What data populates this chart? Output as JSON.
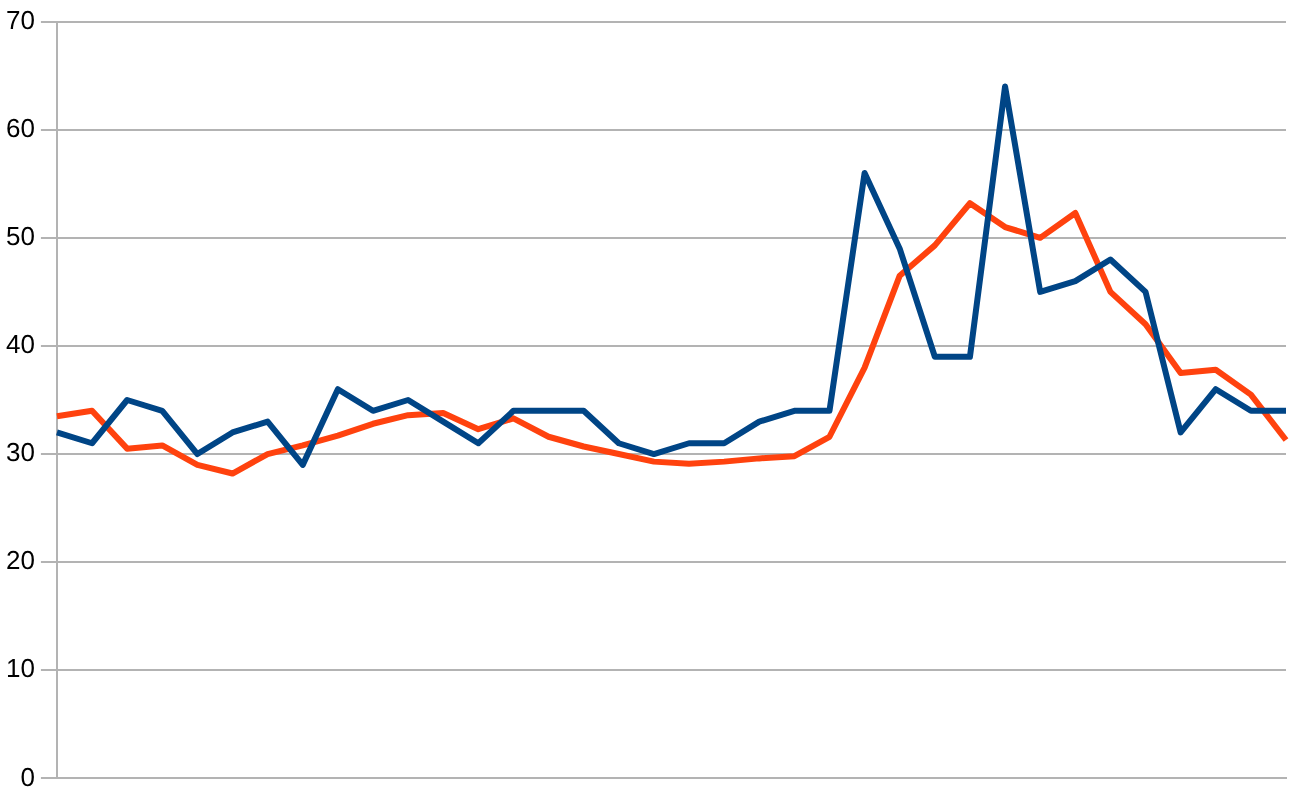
{
  "chart_data": {
    "type": "line",
    "categories": [
      null,
      null,
      null,
      null,
      null,
      null,
      null,
      null,
      null,
      null,
      null,
      null,
      null,
      null,
      null,
      null,
      null,
      null,
      null,
      null,
      null,
      null,
      null,
      null,
      null,
      null,
      null,
      null,
      null,
      null,
      null,
      null,
      null,
      null,
      null,
      null
    ],
    "series": [
      {
        "color": "#004586",
        "values": [
          32,
          31,
          35,
          34,
          30,
          32,
          33,
          29,
          36,
          34,
          35,
          33,
          31,
          34,
          34,
          34,
          31,
          30,
          31,
          31,
          33,
          34,
          34,
          56,
          49,
          39,
          39,
          64,
          45,
          46,
          48,
          45,
          32,
          36,
          34,
          34
        ]
      },
      {
        "color": "#ff420e",
        "values": [
          33.5,
          34,
          30.5,
          30.8,
          29,
          28.2,
          30,
          30.8,
          31.7,
          32.8,
          33.6,
          33.8,
          32.3,
          33.3,
          31.6,
          30.7,
          30,
          29.3,
          29.1,
          29.3,
          29.6,
          29.8,
          31.6,
          38,
          46.5,
          49.3,
          53.2,
          51,
          50,
          52.3,
          45,
          42,
          37.5,
          37.8,
          35.5,
          31.3
        ]
      }
    ],
    "ylim": [
      0,
      70
    ],
    "yticks": [
      0,
      10,
      20,
      30,
      40,
      50,
      60,
      70
    ],
    "grid": "y",
    "legend": false,
    "tick_labels": "y",
    "marker": "none",
    "line_style": "solid"
  }
}
